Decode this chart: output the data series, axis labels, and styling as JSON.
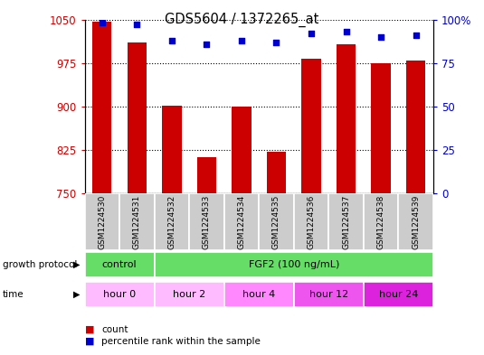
{
  "title": "GDS5604 / 1372265_at",
  "samples": [
    "GSM1224530",
    "GSM1224531",
    "GSM1224532",
    "GSM1224533",
    "GSM1224534",
    "GSM1224535",
    "GSM1224536",
    "GSM1224537",
    "GSM1224538",
    "GSM1224539"
  ],
  "bar_values": [
    1046,
    1010,
    902,
    812,
    900,
    822,
    983,
    1008,
    975,
    979
  ],
  "percentile_values": [
    98,
    97,
    88,
    86,
    88,
    87,
    92,
    93,
    90,
    91
  ],
  "bar_color": "#cc0000",
  "dot_color": "#0000cc",
  "ymin": 750,
  "ymax": 1050,
  "yticks": [
    750,
    825,
    900,
    975,
    1050
  ],
  "y2min": 0,
  "y2max": 100,
  "y2ticks": [
    0,
    25,
    50,
    75,
    100
  ],
  "grid_color": "black",
  "ylabel_color": "#cc0000",
  "y2label_color": "#0000cc",
  "sample_box_color": "#cccccc",
  "gp_colors": [
    "#66dd66",
    "#66dd66"
  ],
  "gp_texts": [
    "control",
    "FGF2 (100 ng/mL)"
  ],
  "gp_starts": [
    0,
    2
  ],
  "gp_ends": [
    2,
    10
  ],
  "time_texts": [
    "hour 0",
    "hour 2",
    "hour 4",
    "hour 12",
    "hour 24"
  ],
  "time_starts": [
    0,
    2,
    4,
    6,
    8
  ],
  "time_ends": [
    2,
    4,
    6,
    8,
    10
  ],
  "time_colors": [
    "#ffbbff",
    "#ffbbff",
    "#ff88ff",
    "#ee55ee",
    "#dd22dd"
  ]
}
